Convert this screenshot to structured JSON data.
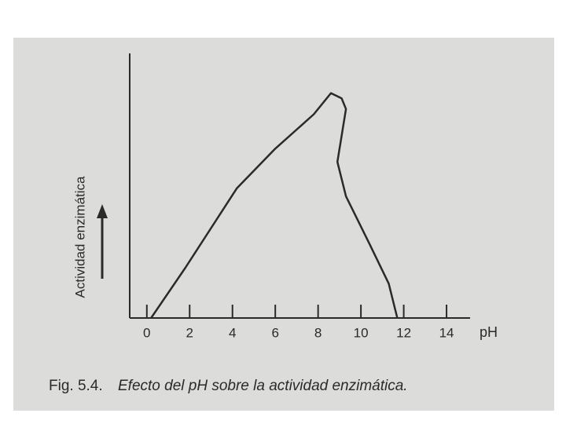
{
  "chart_data": {
    "type": "line",
    "caption_label": "Fig. 5.4.",
    "title": "Efecto del pH sobre la actividad enzimática.",
    "x_label": "pH",
    "y_label": "Actividad enzimática",
    "x": [
      0.2,
      1.8,
      4.2,
      6.0,
      7.8,
      8.6,
      9.1,
      9.3,
      8.9,
      9.3,
      10.4,
      11.3,
      11.7
    ],
    "values": [
      0,
      19,
      49,
      64,
      77,
      85,
      83,
      79,
      59,
      46,
      28,
      13,
      0
    ],
    "color": "#2a2a2a",
    "xlim": [
      -0.8,
      15.1
    ],
    "ylim": [
      0,
      100
    ],
    "xticks": [
      0,
      2,
      4,
      6,
      8,
      10,
      12,
      14
    ]
  }
}
